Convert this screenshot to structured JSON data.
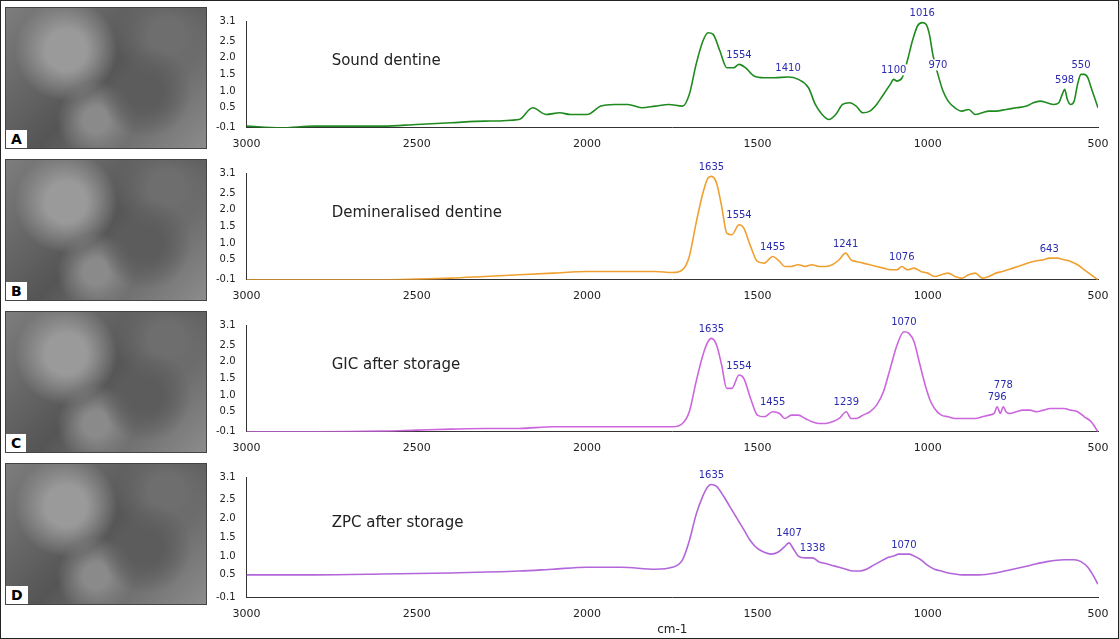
{
  "chart_data": [
    {
      "type": "line",
      "panel": "A",
      "title": "Sound dentine",
      "color": "#1f8a1f",
      "grid": false,
      "xlim": [
        3000,
        500
      ],
      "xticks": [
        3000,
        2500,
        2000,
        1500,
        1000,
        500
      ],
      "ylim": [
        -0.1,
        3.1
      ],
      "yticks": [
        -0.1,
        0.5,
        {
          "value": 1,
          "label": "1.0"
        },
        1.5,
        {
          "value": 2,
          "label": "2.0"
        },
        2.5,
        3.1
      ],
      "annotations": [
        1554,
        1410,
        1100,
        1016,
        970,
        598,
        550
      ],
      "x": [
        3000,
        2900,
        2800,
        2700,
        2600,
        2500,
        2400,
        2300,
        2200,
        2160,
        2120,
        2080,
        2050,
        2000,
        1960,
        1920,
        1880,
        1840,
        1800,
        1760,
        1720,
        1700,
        1680,
        1660,
        1645,
        1630,
        1610,
        1590,
        1570,
        1554,
        1535,
        1510,
        1480,
        1450,
        1410,
        1380,
        1350,
        1330,
        1310,
        1290,
        1270,
        1250,
        1230,
        1210,
        1190,
        1170,
        1150,
        1130,
        1110,
        1100,
        1090,
        1075,
        1060,
        1045,
        1030,
        1016,
        1005,
        995,
        985,
        970,
        955,
        940,
        920,
        900,
        880,
        860,
        840,
        820,
        800,
        770,
        740,
        710,
        690,
        670,
        650,
        630,
        615,
        605,
        598,
        590,
        580,
        570,
        560,
        550,
        540,
        530,
        520,
        510,
        500
      ],
      "values": [
        -0.05,
        -0.1,
        -0.05,
        -0.05,
        -0.05,
        0.0,
        0.05,
        0.1,
        0.15,
        0.5,
        0.3,
        0.35,
        0.3,
        0.3,
        0.55,
        0.6,
        0.6,
        0.5,
        0.55,
        0.6,
        0.55,
        0.9,
        1.8,
        2.5,
        2.75,
        2.7,
        2.2,
        1.7,
        1.7,
        1.8,
        1.7,
        1.45,
        1.4,
        1.4,
        1.42,
        1.35,
        1.1,
        0.6,
        0.3,
        0.15,
        0.3,
        0.6,
        0.65,
        0.55,
        0.35,
        0.4,
        0.6,
        0.9,
        1.2,
        1.35,
        1.3,
        1.4,
        1.9,
        2.5,
        2.95,
        3.05,
        3.0,
        2.7,
        2.1,
        1.5,
        1.0,
        0.7,
        0.5,
        0.4,
        0.45,
        0.3,
        0.35,
        0.4,
        0.4,
        0.45,
        0.5,
        0.55,
        0.65,
        0.7,
        0.65,
        0.6,
        0.65,
        0.9,
        1.05,
        0.75,
        0.6,
        0.7,
        1.2,
        1.5,
        1.5,
        1.4,
        1.1,
        0.8,
        0.5
      ]
    },
    {
      "type": "line",
      "panel": "B",
      "title": "Demineralised dentine",
      "color": "#f0a030",
      "grid": false,
      "xlim": [
        3000,
        500
      ],
      "xticks": [
        3000,
        2500,
        2000,
        1500,
        1000,
        500
      ],
      "ylim": [
        -0.1,
        3.1
      ],
      "yticks": [
        -0.1,
        0.5,
        {
          "value": 1,
          "label": "1.0"
        },
        1.5,
        {
          "value": 2,
          "label": "2.0"
        },
        2.5,
        3.1
      ],
      "annotations": [
        1635,
        1554,
        1455,
        1241,
        1076,
        643
      ],
      "x": [
        3000,
        2800,
        2600,
        2500,
        2400,
        2300,
        2200,
        2100,
        2000,
        1900,
        1800,
        1750,
        1720,
        1700,
        1680,
        1660,
        1645,
        1635,
        1620,
        1605,
        1590,
        1575,
        1554,
        1540,
        1520,
        1500,
        1480,
        1455,
        1435,
        1420,
        1400,
        1380,
        1360,
        1340,
        1320,
        1300,
        1280,
        1260,
        1241,
        1225,
        1210,
        1190,
        1170,
        1150,
        1130,
        1110,
        1090,
        1076,
        1060,
        1040,
        1020,
        1000,
        980,
        960,
        940,
        920,
        900,
        880,
        860,
        840,
        820,
        800,
        780,
        750,
        720,
        690,
        660,
        643,
        620,
        600,
        580,
        560,
        540,
        520,
        500
      ],
      "values": [
        -0.1,
        -0.1,
        -0.1,
        -0.08,
        -0.05,
        0.0,
        0.05,
        0.1,
        0.15,
        0.15,
        0.15,
        0.12,
        0.2,
        0.6,
        1.6,
        2.5,
        2.95,
        3.0,
        2.8,
        2.1,
        1.3,
        1.25,
        1.55,
        1.45,
        0.9,
        0.45,
        0.4,
        0.6,
        0.45,
        0.3,
        0.3,
        0.35,
        0.3,
        0.35,
        0.3,
        0.3,
        0.35,
        0.5,
        0.7,
        0.5,
        0.45,
        0.4,
        0.35,
        0.3,
        0.25,
        0.2,
        0.2,
        0.3,
        0.2,
        0.25,
        0.15,
        0.1,
        0.0,
        0.05,
        0.1,
        0.0,
        -0.05,
        0.05,
        0.1,
        -0.05,
        0.0,
        0.1,
        0.15,
        0.25,
        0.35,
        0.45,
        0.5,
        0.55,
        0.55,
        0.5,
        0.45,
        0.35,
        0.2,
        0.05,
        -0.1
      ]
    },
    {
      "type": "line",
      "panel": "C",
      "title": "GIC after storage",
      "color": "#cc66dd",
      "grid": false,
      "xlim": [
        3000,
        500
      ],
      "xticks": [
        3000,
        2500,
        2000,
        1500,
        1000,
        500
      ],
      "ylim": [
        -0.1,
        3.1
      ],
      "yticks": [
        -0.1,
        0.5,
        {
          "value": 1,
          "label": "1.0"
        },
        1.5,
        {
          "value": 2,
          "label": "2.0"
        },
        2.5,
        3.1
      ],
      "annotations": [
        1635,
        1554,
        1455,
        1239,
        1070,
        796,
        778
      ],
      "x": [
        3000,
        2800,
        2600,
        2500,
        2400,
        2300,
        2200,
        2100,
        2000,
        1900,
        1800,
        1750,
        1720,
        1700,
        1680,
        1660,
        1645,
        1635,
        1620,
        1605,
        1590,
        1575,
        1554,
        1540,
        1520,
        1500,
        1480,
        1455,
        1435,
        1420,
        1400,
        1380,
        1360,
        1340,
        1320,
        1300,
        1280,
        1260,
        1239,
        1225,
        1210,
        1190,
        1170,
        1150,
        1130,
        1110,
        1090,
        1070,
        1055,
        1040,
        1025,
        1010,
        995,
        980,
        960,
        940,
        920,
        900,
        880,
        860,
        840,
        820,
        805,
        796,
        787,
        778,
        770,
        760,
        740,
        720,
        700,
        680,
        660,
        640,
        620,
        600,
        580,
        560,
        540,
        520,
        500
      ],
      "values": [
        -0.1,
        -0.1,
        -0.08,
        -0.05,
        -0.02,
        0.0,
        0.0,
        0.05,
        0.05,
        0.05,
        0.05,
        0.05,
        0.15,
        0.5,
        1.4,
        2.2,
        2.6,
        2.7,
        2.5,
        1.9,
        1.2,
        1.2,
        1.6,
        1.5,
        0.9,
        0.4,
        0.35,
        0.5,
        0.45,
        0.3,
        0.4,
        0.4,
        0.3,
        0.2,
        0.15,
        0.15,
        0.2,
        0.3,
        0.5,
        0.3,
        0.3,
        0.4,
        0.5,
        0.7,
        1.1,
        1.8,
        2.5,
        2.9,
        2.85,
        2.6,
        2.0,
        1.4,
        0.9,
        0.6,
        0.4,
        0.35,
        0.3,
        0.3,
        0.3,
        0.3,
        0.35,
        0.4,
        0.45,
        0.65,
        0.45,
        0.65,
        0.5,
        0.45,
        0.5,
        0.55,
        0.55,
        0.5,
        0.55,
        0.6,
        0.6,
        0.6,
        0.55,
        0.5,
        0.35,
        0.2,
        -0.1
      ]
    },
    {
      "type": "line",
      "panel": "D",
      "title": "ZPC after storage",
      "color": "#b366d9",
      "grid": false,
      "x_label": "cm-1",
      "xlim": [
        3000,
        500
      ],
      "xticks": [
        3000,
        2500,
        2000,
        1500,
        1000,
        500
      ],
      "ylim": [
        -0.1,
        3.1
      ],
      "yticks": [
        -0.1,
        0.5,
        {
          "value": 1,
          "label": "1.0"
        },
        1.5,
        {
          "value": 2,
          "label": "2.0"
        },
        2.5,
        3.1
      ],
      "annotations": [
        1635,
        1407,
        1338,
        1070
      ],
      "x": [
        3000,
        2800,
        2600,
        2400,
        2200,
        2100,
        2000,
        1900,
        1800,
        1750,
        1720,
        1700,
        1680,
        1660,
        1645,
        1635,
        1620,
        1600,
        1580,
        1560,
        1540,
        1520,
        1500,
        1480,
        1460,
        1440,
        1420,
        1407,
        1395,
        1380,
        1360,
        1338,
        1320,
        1300,
        1280,
        1260,
        1240,
        1220,
        1200,
        1180,
        1160,
        1140,
        1120,
        1100,
        1085,
        1070,
        1055,
        1040,
        1020,
        1000,
        980,
        960,
        940,
        920,
        900,
        850,
        800,
        750,
        700,
        650,
        600,
        570,
        550,
        530,
        515,
        500
      ],
      "values": [
        0.5,
        0.5,
        0.52,
        0.55,
        0.6,
        0.65,
        0.7,
        0.7,
        0.65,
        0.7,
        0.9,
        1.4,
        2.1,
        2.6,
        2.85,
        2.9,
        2.85,
        2.6,
        2.3,
        2.0,
        1.7,
        1.4,
        1.2,
        1.1,
        1.05,
        1.1,
        1.25,
        1.35,
        1.2,
        1.0,
        0.95,
        0.95,
        0.85,
        0.8,
        0.75,
        0.7,
        0.65,
        0.6,
        0.6,
        0.65,
        0.75,
        0.85,
        0.95,
        1.0,
        1.05,
        1.05,
        1.05,
        1.0,
        0.9,
        0.75,
        0.65,
        0.6,
        0.55,
        0.52,
        0.5,
        0.5,
        0.55,
        0.65,
        0.75,
        0.85,
        0.9,
        0.9,
        0.85,
        0.7,
        0.5,
        0.25
      ]
    }
  ]
}
